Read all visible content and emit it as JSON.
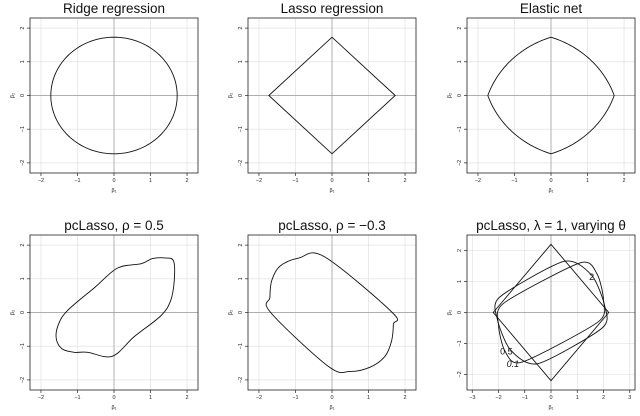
{
  "chart_data": [
    {
      "type": "line",
      "title": "Ridge regression",
      "xlabel": "β₁",
      "ylabel": "β₂",
      "xlim": [
        -2.3,
        2.3
      ],
      "ylim": [
        -2.3,
        2.3
      ],
      "xticks": [
        -2,
        -1,
        0,
        1,
        2
      ],
      "yticks": [
        -2,
        -1,
        0,
        1,
        2
      ],
      "grid": true,
      "series": [
        {
          "shape": "circle",
          "radius": 1.73
        }
      ]
    },
    {
      "type": "line",
      "title": "Lasso regression",
      "xlabel": "β₁",
      "ylabel": "β₂",
      "xlim": [
        -2.3,
        2.3
      ],
      "ylim": [
        -2.3,
        2.3
      ],
      "xticks": [
        -2,
        -1,
        0,
        1,
        2
      ],
      "yticks": [
        -2,
        -1,
        0,
        1,
        2
      ],
      "grid": true,
      "series": [
        {
          "shape": "diamond",
          "points": [
            [
              1.73,
              0
            ],
            [
              0,
              1.73
            ],
            [
              -1.73,
              0
            ],
            [
              0,
              -1.73
            ]
          ]
        }
      ]
    },
    {
      "type": "line",
      "title": "Elastic net",
      "xlabel": "β₁",
      "ylabel": "β₂",
      "xlim": [
        -2.3,
        2.3
      ],
      "ylim": [
        -2.3,
        2.3
      ],
      "xticks": [
        -2,
        -1,
        0,
        1,
        2
      ],
      "yticks": [
        -2,
        -1,
        0,
        1,
        2
      ],
      "grid": true,
      "series": [
        {
          "shape": "elastic-net",
          "radius": 1.73,
          "alpha": 0.5
        }
      ]
    },
    {
      "type": "line",
      "title": "pcLasso, ρ = 0.5",
      "xlabel": "β₁",
      "ylabel": "β₂",
      "xlim": [
        -2.3,
        2.3
      ],
      "ylim": [
        -2.3,
        2.3
      ],
      "xticks": [
        -2,
        -1,
        0,
        1,
        2
      ],
      "yticks": [
        -2,
        -1,
        0,
        1,
        2
      ],
      "grid": true,
      "series": [
        {
          "shape": "pclasso",
          "rho": 0.5,
          "points": [
            [
              1.63,
              1.53
            ],
            [
              1.4,
              1.62
            ],
            [
              1.05,
              1.6
            ],
            [
              0.75,
              1.45
            ],
            [
              0.1,
              1.32
            ],
            [
              -0.52,
              0.75
            ],
            [
              -1.28,
              0.05
            ],
            [
              -1.53,
              -0.38
            ],
            [
              -1.58,
              -0.78
            ],
            [
              -1.42,
              -1.08
            ],
            [
              -1.1,
              -1.18
            ],
            [
              -0.72,
              -1.18
            ],
            [
              -0.05,
              -1.3
            ],
            [
              0.55,
              -0.72
            ],
            [
              1.28,
              -0.1
            ],
            [
              1.55,
              0.35
            ],
            [
              1.65,
              0.95
            ]
          ]
        }
      ]
    },
    {
      "type": "line",
      "title": "pcLasso, ρ = −0.3",
      "xlabel": "β₁",
      "ylabel": "β₂",
      "xlim": [
        -2.3,
        2.3
      ],
      "ylim": [
        -2.3,
        2.3
      ],
      "xticks": [
        -2,
        -1,
        0,
        1,
        2
      ],
      "yticks": [
        -2,
        -1,
        0,
        1,
        2
      ],
      "grid": true,
      "series": [
        {
          "shape": "pclasso",
          "rho": -0.3,
          "points": [
            [
              -0.2,
              1.65
            ],
            [
              -0.9,
              1.62
            ],
            [
              -1.42,
              1.38
            ],
            [
              -1.65,
              0.95
            ],
            [
              -1.7,
              0.45
            ],
            [
              -1.68,
              0.0
            ],
            [
              -0.1,
              -1.6
            ],
            [
              0.5,
              -1.75
            ],
            [
              1.05,
              -1.62
            ],
            [
              1.45,
              -1.3
            ],
            [
              1.63,
              -0.85
            ],
            [
              1.68,
              -0.35
            ],
            [
              1.65,
              0.0
            ]
          ]
        }
      ]
    },
    {
      "type": "line",
      "title": "pcLasso, λ = 1, varying θ",
      "xlabel": "β₁",
      "ylabel": "β₂",
      "xlim": [
        -3.2,
        3.2
      ],
      "ylim": [
        -2.5,
        2.5
      ],
      "xticks": [
        -3,
        -2,
        -1,
        0,
        1,
        2,
        3
      ],
      "yticks": [
        -2,
        -1,
        0,
        1,
        2
      ],
      "grid": true,
      "annotations": [
        "2",
        "0.5",
        "0.1"
      ],
      "series": [
        {
          "name": "0.1",
          "points": [
            [
              -2.2,
              0
            ],
            [
              0,
              2.2
            ],
            [
              2.2,
              0
            ],
            [
              0,
              -2.2
            ]
          ]
        },
        {
          "name": "0.5",
          "points": [
            [
              0.5,
              1.65
            ],
            [
              1.55,
              1.2
            ],
            [
              2.05,
              0.2
            ],
            [
              1.95,
              -0.5
            ],
            [
              -0.5,
              -1.65
            ],
            [
              -1.55,
              -1.2
            ],
            [
              -2.05,
              -0.2
            ],
            [
              -1.95,
              0.5
            ]
          ]
        },
        {
          "name": "2",
          "points": [
            [
              1.1,
              1.6
            ],
            [
              1.75,
              1.25
            ],
            [
              2.0,
              0.4
            ],
            [
              1.8,
              -0.3
            ],
            [
              -1.1,
              -1.6
            ],
            [
              -1.75,
              -1.25
            ],
            [
              -2.0,
              -0.4
            ],
            [
              -1.8,
              0.3
            ]
          ]
        }
      ]
    }
  ]
}
